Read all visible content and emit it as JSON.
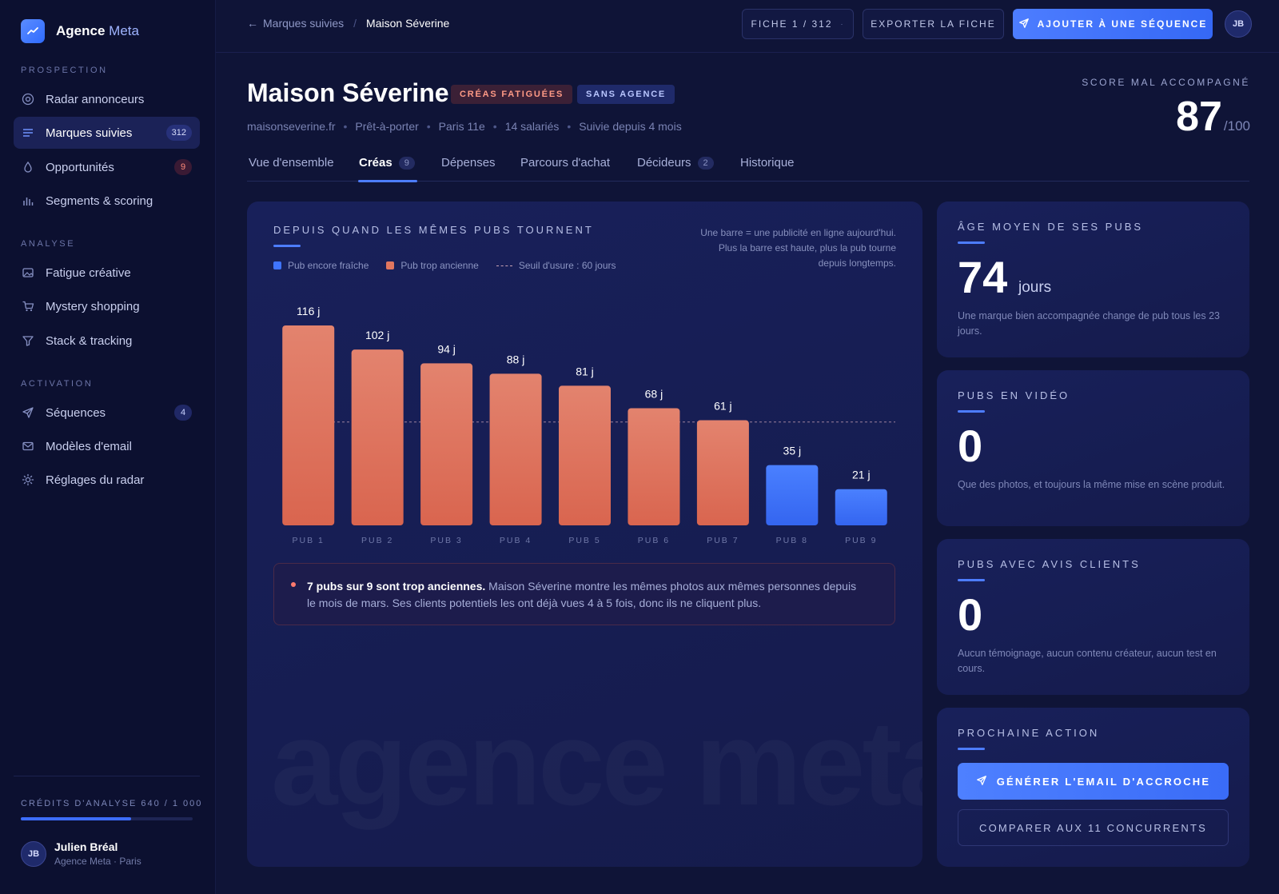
{
  "sidebar": {
    "brand_main": "Agence",
    "brand_accent": "Meta",
    "sections": {
      "prospection": "PROSPECTION",
      "analyse": "ANALYSE",
      "activation": "ACTIVATION"
    },
    "items": [
      {
        "label": "Radar annonceurs",
        "icon": "target-icon"
      },
      {
        "label": "Marques suivies",
        "icon": "list-icon",
        "badge": "312",
        "active": true
      },
      {
        "label": "Opportunités",
        "icon": "drop-icon",
        "badge": "9"
      },
      {
        "label": "Segments & scoring",
        "icon": "bar-chart-icon"
      },
      {
        "label": "Fatigue créative",
        "icon": "image-icon"
      },
      {
        "label": "Mystery shopping",
        "icon": "cart-icon"
      },
      {
        "label": "Stack & tracking",
        "icon": "filter-icon"
      },
      {
        "label": "Séquences",
        "icon": "send-icon",
        "badge": "4"
      },
      {
        "label": "Modèles d'email",
        "icon": "mail-icon"
      },
      {
        "label": "Réglages du radar",
        "icon": "sun-gear-icon"
      }
    ],
    "credits_label": "CRÉDITS D'ANALYSE 640 / 1 000",
    "credits_used": 640,
    "credits_total": 1000,
    "user": {
      "initials": "JB",
      "name": "Julien Bréal",
      "subtitle": "Agence Meta · Paris"
    }
  },
  "topbar": {
    "back_label": "Marques suivies",
    "current": "Maison Séverine",
    "fiche_label": "FICHE 1 / 312",
    "export_label": "EXPORTER LA FICHE",
    "add_label": "AJOUTER À UNE SÉQUENCE",
    "avatar": "JB"
  },
  "header": {
    "title": "Maison Séverine",
    "tag_warn": "CRÉAS FATIGUÉES",
    "tag_info": "SANS AGENCE",
    "meta": [
      "maisonseverine.fr",
      "Prêt-à-porter",
      "Paris 11e",
      "14 salariés",
      "Suivie depuis 4 mois"
    ],
    "score_label": "SCORE MAL ACCOMPAGNÉ",
    "score_value": "87",
    "score_max": "/100"
  },
  "tabs": [
    {
      "label": "Vue d'ensemble"
    },
    {
      "label": "Créas",
      "count": "9",
      "active": true
    },
    {
      "label": "Dépenses"
    },
    {
      "label": "Parcours d'achat"
    },
    {
      "label": "Décideurs",
      "count": "2"
    },
    {
      "label": "Historique"
    }
  ],
  "chart_card": {
    "title": "DEPUIS QUAND LES MÊMES PUBS TOURNENT",
    "note": "Une barre = une publicité en ligne aujourd'hui. Plus la barre est haute, plus la pub tourne depuis longtemps.",
    "legend_fresh": "Pub encore fraîche",
    "legend_old": "Pub trop ancienne",
    "legend_threshold": "Seuil d'usure : 60 jours",
    "alert_bold": "7 pubs sur 9 sont trop anciennes.",
    "alert_text": " Maison Séverine montre les mêmes photos aux mêmes personnes depuis le mois de mars. Ses clients potentiels les ont déjà vues 4 à 5 fois, donc ils ne cliquent plus.",
    "watermark": "agence meta"
  },
  "chart_data": {
    "type": "bar",
    "categories": [
      "PUB 1",
      "PUB 2",
      "PUB 3",
      "PUB 4",
      "PUB 5",
      "PUB 6",
      "PUB 7",
      "PUB 8",
      "PUB 9"
    ],
    "values": [
      116,
      102,
      94,
      88,
      81,
      68,
      61,
      35,
      21
    ],
    "value_labels": [
      "116 j",
      "102 j",
      "94 j",
      "88 j",
      "81 j",
      "68 j",
      "61 j",
      "35 j",
      "21 j"
    ],
    "unit": "jours",
    "threshold": 60,
    "ylim": [
      0,
      116
    ],
    "colors": {
      "fresh": "#3f74ff",
      "old": "#e0765f",
      "threshold": "#c9a3b5"
    },
    "grid": false,
    "legend_position": "top-left"
  },
  "stats": [
    {
      "title": "ÂGE MOYEN DE SES PUBS",
      "value": "74",
      "unit": "jours",
      "desc": "Une marque bien accompagnée change de pub tous les 23 jours."
    },
    {
      "title": "PUBS EN VIDÉO",
      "value": "0",
      "desc": "Que des photos, et toujours la même mise en scène produit."
    },
    {
      "title": "PUBS AVEC AVIS CLIENTS",
      "value": "0",
      "desc": "Aucun témoignage, aucun contenu créateur, aucun test en cours."
    }
  ],
  "next_action": {
    "title": "PROCHAINE ACTION",
    "primary_label": "GÉNÉRER L'EMAIL D'ACCROCHE",
    "secondary_label": "COMPARER AUX 11 CONCURRENTS"
  }
}
